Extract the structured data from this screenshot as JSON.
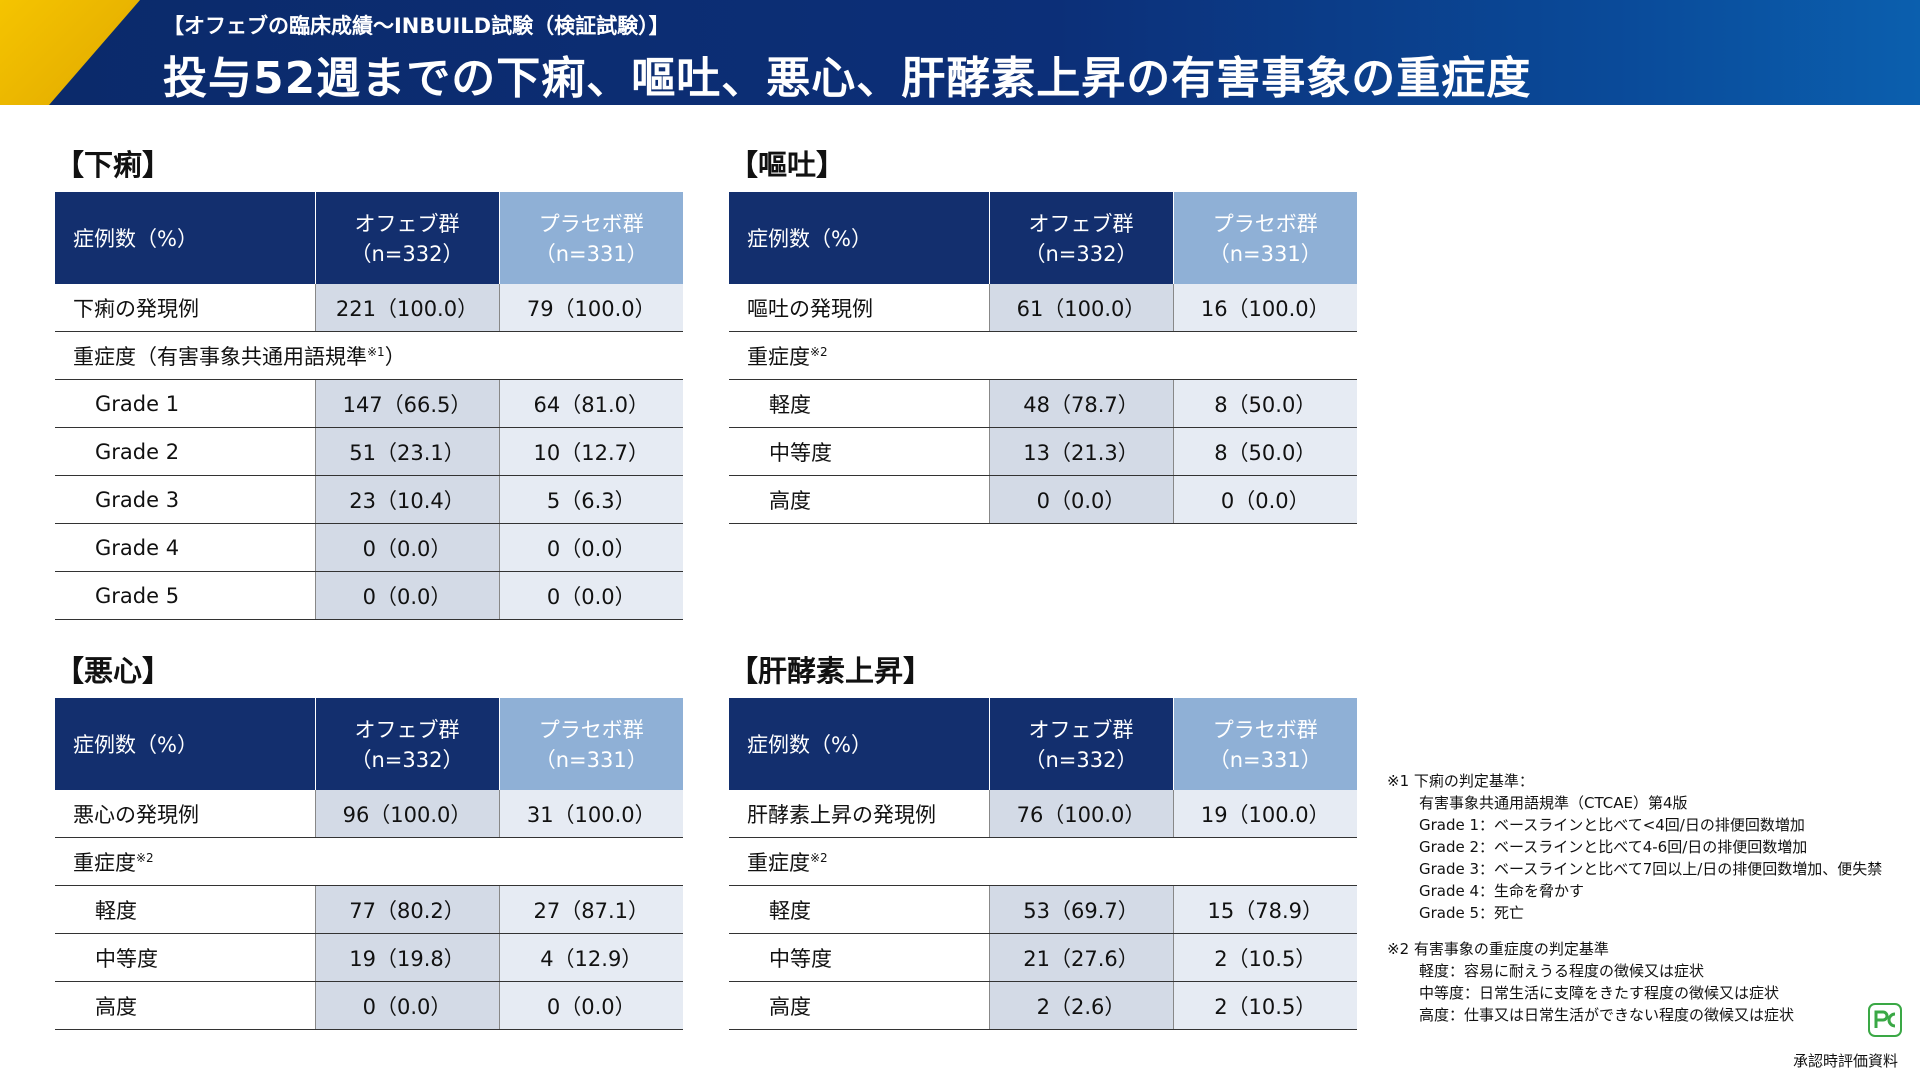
{
  "header": {
    "subtitle": "【オフェブの臨床成績〜INBUILD試験（検証試験）】",
    "title": "投与52週までの下痢、嘔吐、悪心、肝酵素上昇の有害事象の重症度"
  },
  "tables": [
    {
      "title": "【下痢】",
      "header": {
        "label": "症例数（%）",
        "groups": [
          {
            "name": "オフェブ群",
            "n": "（n=332）"
          },
          {
            "name": "プラセボ群",
            "n": "（n=331）"
          }
        ]
      },
      "onset": [
        "下痢の発現例",
        "221（100.0）",
        "79（100.0）"
      ],
      "severity": [
        "重症度（有害事象共通用語規準",
        "※1",
        "）"
      ],
      "grades": [
        [
          "Grade 1",
          "147（66.5）",
          "64（81.0）"
        ],
        [
          "Grade 2",
          "51（23.1）",
          "10（12.7）"
        ],
        [
          "Grade 3",
          "23（10.4）",
          "5（6.3）"
        ],
        [
          "Grade 4",
          "0（0.0）",
          "0（0.0）"
        ],
        [
          "Grade 5",
          "0（0.0）",
          "0（0.0）"
        ]
      ]
    },
    {
      "title": "【嘔吐】",
      "header": {
        "label": "症例数（%）",
        "groups": [
          {
            "name": "オフェブ群",
            "n": "（n=332）"
          },
          {
            "name": "プラセボ群",
            "n": "（n=331）"
          }
        ]
      },
      "onset": [
        "嘔吐の発現例",
        "61（100.0）",
        "16（100.0）"
      ],
      "severity": [
        "重症度",
        "※2"
      ],
      "grades": [
        [
          "軽度",
          "48（78.7）",
          "8（50.0）"
        ],
        [
          "中等度",
          "13（21.3）",
          "8（50.0）"
        ],
        [
          "高度",
          "0（0.0）",
          "0（0.0）"
        ]
      ]
    },
    {
      "title": "【悪心】",
      "header": {
        "label": "症例数（%）",
        "groups": [
          {
            "name": "オフェブ群",
            "n": "（n=332）"
          },
          {
            "name": "プラセボ群",
            "n": "（n=331）"
          }
        ]
      },
      "onset": [
        "悪心の発現例",
        "96（100.0）",
        "31（100.0）"
      ],
      "severity": [
        "重症度",
        "※2"
      ],
      "grades": [
        [
          "軽度",
          "77（80.2）",
          "27（87.1）"
        ],
        [
          "中等度",
          "19（19.8）",
          "4（12.9）"
        ],
        [
          "高度",
          "0（0.0）",
          "0（0.0）"
        ]
      ]
    },
    {
      "title": "【肝酵素上昇】",
      "header": {
        "label": "症例数（%）",
        "groups": [
          {
            "name": "オフェブ群",
            "n": "（n=332）"
          },
          {
            "name": "プラセボ群",
            "n": "（n=331）"
          }
        ]
      },
      "onset": [
        "肝酵素上昇の発現例",
        "76（100.0）",
        "19（100.0）"
      ],
      "severity": [
        "重症度",
        "※2"
      ],
      "grades": [
        [
          "軽度",
          "53（69.7）",
          "15（78.9）"
        ],
        [
          "中等度",
          "21（27.6）",
          "2（10.5）"
        ],
        [
          "高度",
          "2（2.6）",
          "2（10.5）"
        ]
      ]
    }
  ],
  "notes": [
    {
      "title": "※1 下痢の判定基準：",
      "lines": [
        "有害事象共通用語規準（CTCAE）第4版",
        "Grade 1：ベースラインと比べて<4回/日の排便回数増加",
        "Grade 2：ベースラインと比べて4-6回/日の排便回数増加",
        "Grade 3：ベースラインと比べて7回以上/日の排便回数増加、便失禁",
        "Grade 4：生命を脅かす",
        "Grade 5：死亡"
      ]
    },
    {
      "title": "※2 有害事象の重症度の判定基準",
      "lines": [
        "軽度：容易に耐えうる程度の徴候又は症状",
        "中等度：日常生活に支障をきたす程度の徴候又は症状",
        "高度：仕事又は日常生活ができない程度の徴候又は症状"
      ]
    }
  ],
  "footer": "承認時評価資料"
}
